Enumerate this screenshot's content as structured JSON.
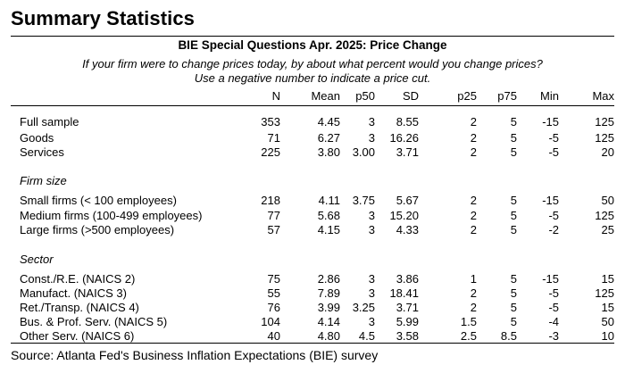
{
  "title": "Summary Statistics",
  "subtitle": "BIE Special Questions Apr. 2025: Price Change",
  "question_line1": "If your firm were to change prices today, by about what percent would you change prices?",
  "question_line2": "Use a negative number to indicate a price cut.",
  "columns": [
    "N",
    "Mean",
    "p50",
    "SD",
    "p25",
    "p75",
    "Min",
    "Max"
  ],
  "groups": [
    {
      "heading": "",
      "rows": [
        {
          "label": "Full sample",
          "values": [
            "353",
            "4.45",
            "3",
            "8.55",
            "2",
            "5",
            "-15",
            "125"
          ]
        },
        {
          "label": "Goods",
          "values": [
            "71",
            "6.27",
            "3",
            "16.26",
            "2",
            "5",
            "-5",
            "125"
          ]
        },
        {
          "label": "Services",
          "values": [
            "225",
            "3.80",
            "3.00",
            "3.71",
            "2",
            "5",
            "-5",
            "20"
          ]
        }
      ]
    },
    {
      "heading": "Firm size",
      "rows": [
        {
          "label": "Small firms (< 100 employees)",
          "values": [
            "218",
            "4.11",
            "3.75",
            "5.67",
            "2",
            "5",
            "-15",
            "50"
          ]
        },
        {
          "label": "Medium firms (100-499 employees)",
          "values": [
            "77",
            "5.68",
            "3",
            "15.20",
            "2",
            "5",
            "-5",
            "125"
          ]
        },
        {
          "label": "Large firms (>500 employees)",
          "values": [
            "57",
            "4.15",
            "3",
            "4.33",
            "2",
            "5",
            "-2",
            "25"
          ]
        }
      ]
    },
    {
      "heading": "Sector",
      "rows": [
        {
          "label": "Const./R.E. (NAICS 2)",
          "values": [
            "75",
            "2.86",
            "3",
            "3.86",
            "1",
            "5",
            "-15",
            "15"
          ]
        },
        {
          "label": "Manufact. (NAICS 3)",
          "values": [
            "55",
            "7.89",
            "3",
            "18.41",
            "2",
            "5",
            "-5",
            "125"
          ]
        },
        {
          "label": "Ret./Transp. (NAICS 4)",
          "values": [
            "76",
            "3.99",
            "3.25",
            "3.71",
            "2",
            "5",
            "-5",
            "15"
          ]
        },
        {
          "label": "Bus. & Prof. Serv. (NAICS 5)",
          "values": [
            "104",
            "4.14",
            "3",
            "5.99",
            "1.5",
            "5",
            "-4",
            "50"
          ]
        },
        {
          "label": "Other Serv. (NAICS 6)",
          "values": [
            "40",
            "4.80",
            "4.5",
            "3.58",
            "2.5",
            "8.5",
            "-3",
            "10"
          ]
        }
      ]
    }
  ],
  "source": "Source: Atlanta Fed's Business Inflation Expectations (BIE) survey"
}
